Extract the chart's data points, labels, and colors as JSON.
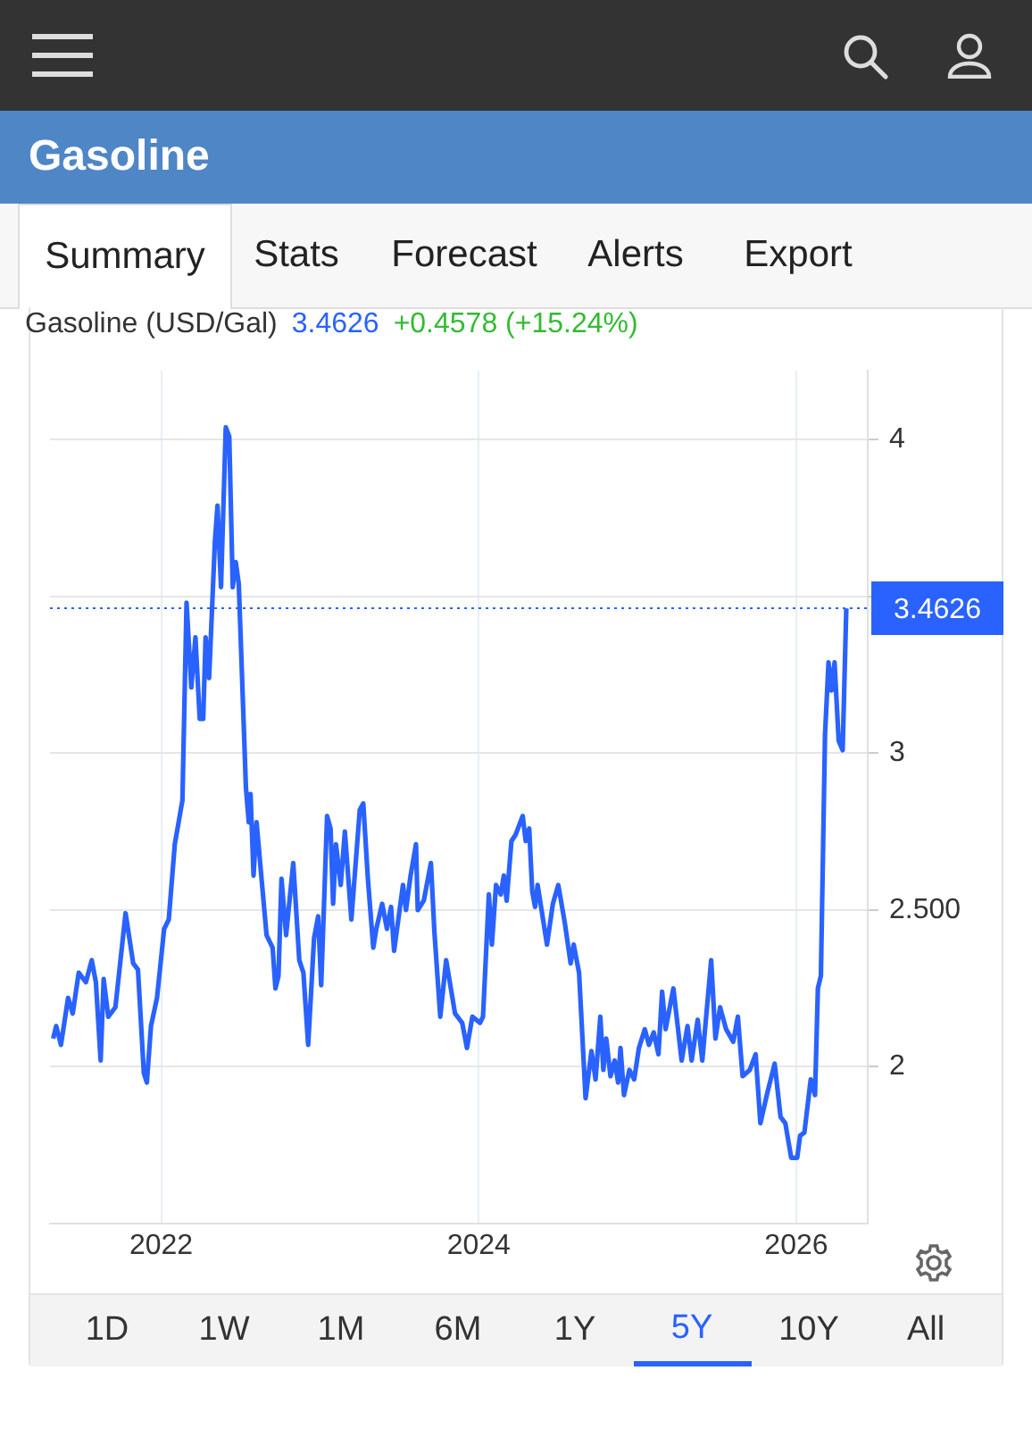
{
  "chart_data": {
    "type": "line",
    "title": "Gasoline",
    "subtitle": "Gasoline (USD/Gal)",
    "grid": true,
    "xlim": [
      2021.3,
      2026.45
    ],
    "xticks": [
      2022,
      2024,
      2026
    ],
    "ylim": [
      1.5,
      4.22
    ],
    "yticks": [
      2,
      {
        "value": 2.5,
        "label": "2.500"
      },
      3,
      {
        "value": 3.5,
        "label": null
      },
      4
    ],
    "ref_lines": [
      {
        "axis": "y",
        "value": 3.4626,
        "label": "3.4626",
        "color": "#2962ff",
        "line_style": "dotted"
      }
    ],
    "annotations": [
      "3.4626",
      "+0.4578 (+15.24%)",
      "Summary",
      "Stats",
      "Forecast",
      "Alerts",
      "Export",
      "1D",
      "1W",
      "1M",
      "6M",
      "1Y",
      "5Y",
      "10Y",
      "All"
    ],
    "x": [
      2021.32,
      2021.339,
      2021.369,
      2021.414,
      2021.443,
      2021.481,
      2021.526,
      2021.563,
      2021.589,
      2021.619,
      2021.638,
      2021.667,
      2021.712,
      2021.776,
      2021.824,
      2021.854,
      2021.891,
      2021.91,
      2021.936,
      2021.974,
      2022.019,
      2022.048,
      2022.086,
      2022.134,
      2022.16,
      2022.19,
      2022.216,
      2022.243,
      2022.265,
      2022.28,
      2022.302,
      2022.339,
      2022.355,
      2022.377,
      2022.407,
      2022.429,
      2022.451,
      2022.47,
      2022.489,
      2022.534,
      2022.552,
      2022.563,
      2022.582,
      2022.601,
      2022.627,
      2022.664,
      2022.702,
      2022.72,
      2022.739,
      2022.758,
      2022.787,
      2022.832,
      2022.87,
      2022.896,
      2022.926,
      2022.963,
      2022.989,
      2023.008,
      2023.045,
      2023.067,
      2023.083,
      2023.101,
      2023.131,
      2023.157,
      2023.198,
      2023.251,
      2023.273,
      2023.302,
      2023.336,
      2023.355,
      2023.392,
      2023.422,
      2023.448,
      2023.467,
      2023.523,
      2023.542,
      2023.571,
      2023.605,
      2023.616,
      2023.654,
      2023.699,
      2023.721,
      2023.758,
      2023.795,
      2023.851,
      2023.896,
      2023.926,
      2023.96,
      2024.008,
      2024.027,
      2024.064,
      2024.083,
      2024.109,
      2024.139,
      2024.158,
      2024.176,
      2024.206,
      2024.232,
      2024.277,
      2024.296,
      2024.318,
      2024.337,
      2024.355,
      2024.371,
      2024.43,
      2024.467,
      2024.501,
      2024.542,
      2024.579,
      2024.598,
      2024.632,
      2024.673,
      2024.71,
      2024.736,
      2024.766,
      2024.785,
      2024.803,
      2024.83,
      2024.856,
      2024.878,
      2024.893,
      2024.915,
      2024.949,
      2024.979,
      2025.009,
      2025.046,
      2025.072,
      2025.102,
      2025.132,
      2025.155,
      2025.177,
      2025.226,
      2025.278,
      2025.315,
      2025.341,
      2025.379,
      2025.408,
      2025.464,
      2025.491,
      2025.52,
      2025.558,
      2025.603,
      2025.632,
      2025.662,
      2025.707,
      2025.744,
      2025.774,
      2025.819,
      2025.864,
      2025.901,
      2025.931,
      2025.968,
      2026.006,
      2026.024,
      2026.051,
      2026.091,
      2026.118,
      2026.136,
      2026.155,
      2026.181,
      2026.203,
      2026.222,
      2026.241,
      2026.267,
      2026.292,
      2026.315
    ],
    "series": [
      {
        "color": "#2962ff",
        "values": [
          2.09,
          2.13,
          2.07,
          2.22,
          2.17,
          2.3,
          2.27,
          2.34,
          2.27,
          2.02,
          2.28,
          2.16,
          2.19,
          2.49,
          2.33,
          2.31,
          1.98,
          1.95,
          2.13,
          2.22,
          2.44,
          2.47,
          2.71,
          2.85,
          3.48,
          3.21,
          3.37,
          3.11,
          3.11,
          3.37,
          3.24,
          3.68,
          3.79,
          3.53,
          4.04,
          4.01,
          3.53,
          3.61,
          3.54,
          2.89,
          2.78,
          2.87,
          2.61,
          2.78,
          2.63,
          2.42,
          2.38,
          2.25,
          2.29,
          2.6,
          2.42,
          2.65,
          2.34,
          2.3,
          2.07,
          2.41,
          2.48,
          2.26,
          2.8,
          2.76,
          2.52,
          2.71,
          2.58,
          2.75,
          2.47,
          2.82,
          2.84,
          2.6,
          2.38,
          2.44,
          2.52,
          2.44,
          2.51,
          2.37,
          2.58,
          2.5,
          2.61,
          2.71,
          2.5,
          2.53,
          2.65,
          2.43,
          2.16,
          2.34,
          2.17,
          2.14,
          2.06,
          2.16,
          2.14,
          2.16,
          2.55,
          2.39,
          2.58,
          2.55,
          2.61,
          2.53,
          2.72,
          2.74,
          2.8,
          2.72,
          2.76,
          2.56,
          2.51,
          2.58,
          2.39,
          2.52,
          2.58,
          2.46,
          2.33,
          2.39,
          2.3,
          1.9,
          2.05,
          1.96,
          2.16,
          1.99,
          2.09,
          1.97,
          2.02,
          1.95,
          2.06,
          1.91,
          1.99,
          1.96,
          2.06,
          2.12,
          2.07,
          2.11,
          2.04,
          2.24,
          2.12,
          2.25,
          2.02,
          2.13,
          2.02,
          2.15,
          2.02,
          2.34,
          2.09,
          2.19,
          2.12,
          2.08,
          2.16,
          1.97,
          1.99,
          2.04,
          1.82,
          1.92,
          2.01,
          1.84,
          1.82,
          1.71,
          1.71,
          1.78,
          1.79,
          1.96,
          1.91,
          2.25,
          2.29,
          3.06,
          3.29,
          3.2,
          3.29,
          3.04,
          3.01,
          3.4626
        ]
      }
    ]
  }
}
